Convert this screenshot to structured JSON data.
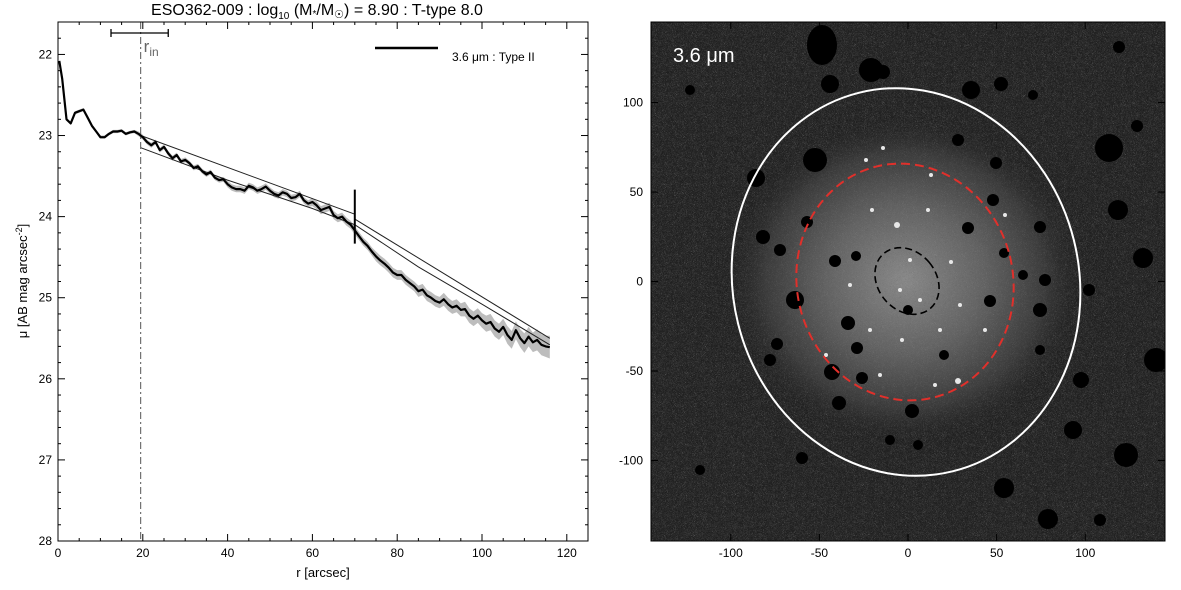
{
  "figure": {
    "title_parts": {
      "galaxy": "ESO362-009 : log",
      "log_sub": "10",
      "mass_open": " (M",
      "mass_star": "*",
      "mass_slash": "/M",
      "sun": "☉",
      "mass_close": ") = 8.90 : T-type 8.0"
    }
  },
  "chart_data": [
    {
      "type": "line",
      "title": "ESO362-009 : log10 (M*/M☉) = 8.90 : T-type 8.0",
      "xlabel": "r [arcsec]",
      "ylabel_parts": {
        "main": "μ [AB mag arcsec",
        "sup": "-2",
        "close": "]"
      },
      "xlim": [
        0,
        125
      ],
      "ylim": [
        28,
        21.6
      ],
      "y_inverted": true,
      "xticks": [
        0,
        20,
        40,
        60,
        80,
        100,
        120
      ],
      "yticks": [
        22,
        23,
        24,
        25,
        26,
        27,
        28
      ],
      "legend": {
        "text": "3.6 μm : Type II",
        "placement": "top-right"
      },
      "annotations": {
        "rin_label": "r",
        "rin_sub": "in",
        "rin_x": 19.5,
        "rin_bar": [
          12.5,
          26
        ],
        "break_radius": 70,
        "break_mu": 24.0
      },
      "series": [
        {
          "name": "3.6 μm : Type II",
          "kind": "profile",
          "x": [
            0.3,
            1,
            2,
            3,
            4,
            5,
            6,
            7,
            8,
            9,
            10,
            11,
            12,
            13,
            14,
            15,
            16,
            17,
            18,
            19,
            20,
            21,
            22,
            23,
            24,
            25,
            26,
            27,
            28,
            29,
            30,
            31,
            32,
            33,
            34,
            35,
            36,
            37,
            38,
            39,
            40,
            41,
            42,
            43,
            44,
            45,
            46,
            47,
            48,
            49,
            50,
            51,
            52,
            53,
            54,
            55,
            56,
            57,
            58,
            59,
            60,
            61,
            62,
            63,
            64,
            65,
            66,
            67,
            68,
            69,
            70,
            71,
            72,
            73,
            74,
            75,
            76,
            77,
            78,
            79,
            80,
            81,
            82,
            83,
            84,
            85,
            86,
            87,
            88,
            89,
            90,
            91,
            92,
            93,
            94,
            95,
            96,
            97,
            98,
            99,
            100,
            101,
            102,
            103,
            104,
            105,
            106,
            107,
            108,
            109,
            110,
            111,
            112,
            113,
            114,
            115,
            116
          ],
          "y": [
            22.08,
            22.3,
            22.8,
            22.85,
            22.72,
            22.7,
            22.68,
            22.78,
            22.88,
            22.95,
            23.02,
            23.02,
            22.98,
            22.95,
            22.95,
            22.94,
            22.98,
            22.96,
            22.95,
            22.98,
            23.02,
            23.08,
            23.12,
            23.08,
            23.18,
            23.14,
            23.22,
            23.28,
            23.24,
            23.32,
            23.3,
            23.34,
            23.4,
            23.38,
            23.44,
            23.48,
            23.45,
            23.52,
            23.55,
            23.54,
            23.6,
            23.64,
            23.66,
            23.66,
            23.68,
            23.62,
            23.64,
            23.68,
            23.66,
            23.63,
            23.68,
            23.72,
            23.74,
            23.7,
            23.72,
            23.77,
            23.76,
            23.72,
            23.8,
            23.84,
            23.82,
            23.86,
            23.92,
            23.9,
            23.88,
            23.98,
            24.02,
            24.0,
            24.06,
            24.1,
            24.17,
            24.24,
            24.31,
            24.36,
            24.43,
            24.49,
            24.54,
            24.58,
            24.63,
            24.69,
            24.72,
            24.72,
            24.78,
            24.82,
            24.86,
            24.92,
            24.9,
            24.97,
            25.0,
            25.04,
            25.06,
            25.02,
            25.08,
            25.12,
            25.1,
            25.15,
            25.14,
            25.22,
            25.26,
            25.22,
            25.28,
            25.32,
            25.3,
            25.38,
            25.42,
            25.36,
            25.46,
            25.52,
            25.4,
            25.5,
            25.56,
            25.48,
            25.55,
            25.52,
            25.58,
            25.6,
            25.61
          ],
          "uncertainty": [
            0.02,
            0.02,
            0.02,
            0.02,
            0.02,
            0.02,
            0.02,
            0.02,
            0.02,
            0.02,
            0.02,
            0.02,
            0.02,
            0.02,
            0.02,
            0.02,
            0.02,
            0.02,
            0.02,
            0.03,
            0.03,
            0.03,
            0.03,
            0.03,
            0.03,
            0.03,
            0.03,
            0.03,
            0.03,
            0.03,
            0.03,
            0.03,
            0.03,
            0.03,
            0.03,
            0.03,
            0.03,
            0.03,
            0.03,
            0.03,
            0.04,
            0.04,
            0.04,
            0.04,
            0.04,
            0.04,
            0.04,
            0.04,
            0.04,
            0.04,
            0.04,
            0.04,
            0.04,
            0.04,
            0.04,
            0.04,
            0.04,
            0.04,
            0.04,
            0.04,
            0.05,
            0.05,
            0.05,
            0.05,
            0.05,
            0.05,
            0.05,
            0.05,
            0.05,
            0.05,
            0.05,
            0.05,
            0.05,
            0.05,
            0.05,
            0.06,
            0.06,
            0.06,
            0.06,
            0.06,
            0.06,
            0.06,
            0.06,
            0.06,
            0.06,
            0.07,
            0.07,
            0.07,
            0.07,
            0.07,
            0.07,
            0.08,
            0.08,
            0.08,
            0.08,
            0.08,
            0.09,
            0.09,
            0.09,
            0.09,
            0.09,
            0.1,
            0.1,
            0.1,
            0.1,
            0.1,
            0.11,
            0.11,
            0.11,
            0.11,
            0.12,
            0.12,
            0.12,
            0.13,
            0.13,
            0.13,
            0.14
          ]
        },
        {
          "kind": "fit-inner",
          "x": [
            19.5,
            70
          ],
          "y": [
            23.0,
            23.97
          ]
        },
        {
          "kind": "fit-outer",
          "x": [
            70,
            116
          ],
          "y": [
            24.03,
            25.5
          ]
        },
        {
          "kind": "model-total",
          "x": [
            19.5,
            40,
            60,
            70,
            85,
            100,
            116
          ],
          "y": [
            23.15,
            23.55,
            23.9,
            24.1,
            24.62,
            25.08,
            25.58
          ]
        }
      ]
    },
    {
      "type": "heatmap",
      "panel_label": "3.6 μm",
      "xlim": [
        -145,
        145
      ],
      "ylim": [
        -145,
        145
      ],
      "xticks": [
        -100,
        -50,
        0,
        50,
        100
      ],
      "yticks": [
        100,
        50,
        0,
        -50,
        -100
      ],
      "ellipses": [
        {
          "kind": "outer",
          "color": "#ffffff",
          "style": "solid",
          "cx": 2,
          "cy": -5,
          "a": 99,
          "b": 99,
          "note": "approximate"
        },
        {
          "kind": "break",
          "color": "#e0302b",
          "style": "dashed",
          "cx": -3,
          "cy": -1,
          "a": 63,
          "b": 63
        },
        {
          "kind": "inner",
          "color": "#000000",
          "style": "dashed",
          "cx": 0,
          "cy": 0,
          "a": 17,
          "b": 17
        }
      ]
    }
  ]
}
